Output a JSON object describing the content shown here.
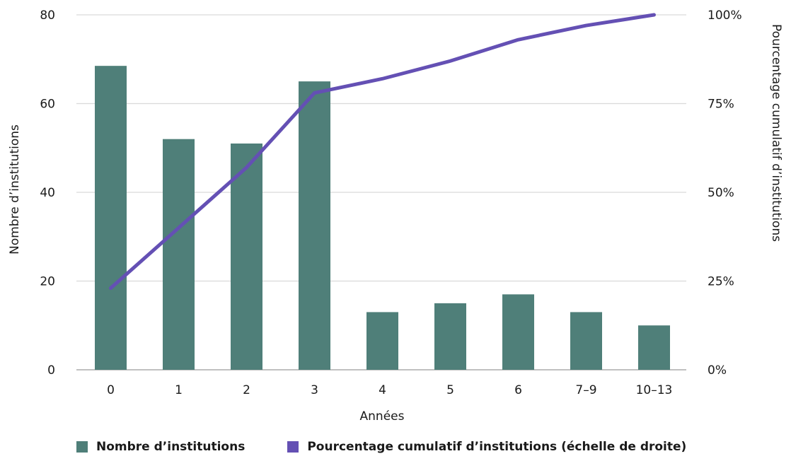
{
  "chart_data": {
    "type": "bar",
    "categories": [
      "0",
      "1",
      "2",
      "3",
      "4",
      "5",
      "6",
      "7–9",
      "10–13"
    ],
    "series": [
      {
        "name": "Nombre d’institutions",
        "type": "bar",
        "axis": "left",
        "color": "#4f7f79",
        "values": [
          68.5,
          52,
          51,
          65,
          13,
          15,
          17,
          13,
          10
        ]
      },
      {
        "name": "Pourcentage cumulatif d’institutions (échelle de droite)",
        "type": "line",
        "axis": "right",
        "color": "#6450b4",
        "values": [
          23,
          40,
          57,
          78,
          82,
          87,
          93,
          97,
          100
        ]
      }
    ],
    "xlabel": "Années",
    "ylabel": "Nombre d’institutions",
    "y2label": "Pourcentage cumulatif d’institutions",
    "ylim": [
      0,
      80
    ],
    "y2lim": [
      0,
      100
    ],
    "yticks": [
      "0",
      "20",
      "40",
      "60",
      "80"
    ],
    "y2ticks": [
      "0%",
      "25%",
      "50%",
      "75%",
      "100%"
    ],
    "grid": true,
    "legend_position": "bottom"
  }
}
